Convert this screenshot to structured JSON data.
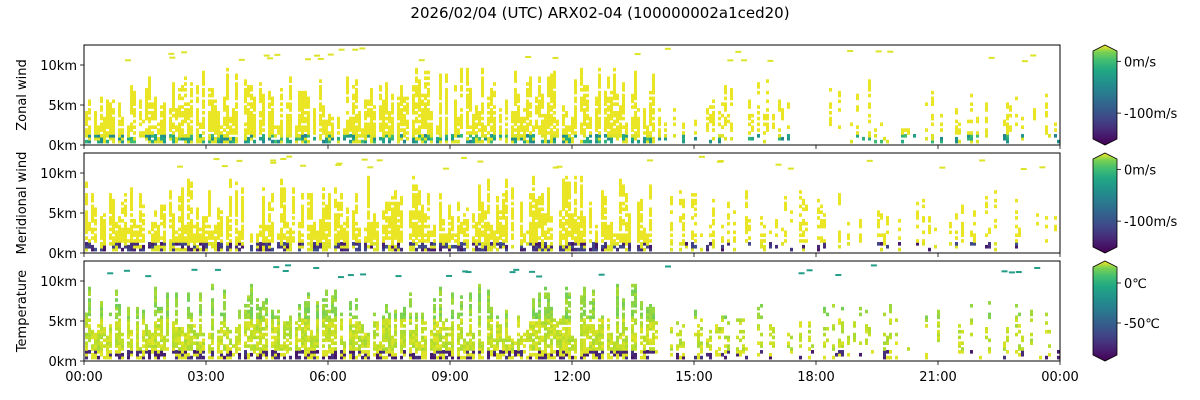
{
  "title": "2026/02/04 (UTC) ARX02-04 (100000002a1ced20)",
  "colors": {
    "viridis_top": "#fde725",
    "viridis_mid": "#21918c",
    "viridis_bottom": "#440154",
    "frame": "#000000"
  },
  "chart_data": [
    {
      "type": "heatmap",
      "ylabel": "Zonal wind",
      "x_range": [
        "00:00",
        "24:00"
      ],
      "x_tick_labels": [
        "00:00",
        "03:00",
        "06:00",
        "09:00",
        "12:00",
        "15:00",
        "18:00",
        "21:00",
        "00:00"
      ],
      "ylim_km": [
        0,
        12.5
      ],
      "y_ticks": [
        {
          "value": 0,
          "label": "0km"
        },
        {
          "value": 5,
          "label": "5km"
        },
        {
          "value": 10,
          "label": "10km"
        }
      ],
      "colorbar": {
        "colormap": "viridis",
        "extend": "both",
        "range": [
          -150,
          20
        ],
        "ticks": [
          {
            "value": 0,
            "label": "0m/s"
          },
          {
            "value": -100,
            "label": "-100m/s"
          }
        ]
      },
      "seed": 11
    },
    {
      "type": "heatmap",
      "ylabel": "Meridional wind",
      "x_range": [
        "00:00",
        "24:00"
      ],
      "x_tick_labels": [
        "00:00",
        "03:00",
        "06:00",
        "09:00",
        "12:00",
        "15:00",
        "18:00",
        "21:00",
        "00:00"
      ],
      "ylim_km": [
        0,
        12.5
      ],
      "y_ticks": [
        {
          "value": 0,
          "label": "0km"
        },
        {
          "value": 5,
          "label": "5km"
        },
        {
          "value": 10,
          "label": "10km"
        }
      ],
      "colorbar": {
        "colormap": "viridis",
        "extend": "both",
        "range": [
          -150,
          20
        ],
        "ticks": [
          {
            "value": 0,
            "label": "0m/s"
          },
          {
            "value": -100,
            "label": "-100m/s"
          }
        ]
      },
      "seed": 29
    },
    {
      "type": "heatmap",
      "ylabel": "Temperature",
      "x_range": [
        "00:00",
        "24:00"
      ],
      "x_tick_labels": [
        "00:00",
        "03:00",
        "06:00",
        "09:00",
        "12:00",
        "15:00",
        "18:00",
        "21:00",
        "00:00"
      ],
      "ylim_km": [
        0,
        12.5
      ],
      "y_ticks": [
        {
          "value": 0,
          "label": "0km"
        },
        {
          "value": 5,
          "label": "5km"
        },
        {
          "value": 10,
          "label": "10km"
        }
      ],
      "colorbar": {
        "colormap": "viridis",
        "extend": "both",
        "range": [
          -90,
          20
        ],
        "ticks": [
          {
            "value": 0,
            "label": "0℃"
          },
          {
            "value": -50,
            "label": "-50℃"
          }
        ]
      },
      "seed": 47
    }
  ]
}
